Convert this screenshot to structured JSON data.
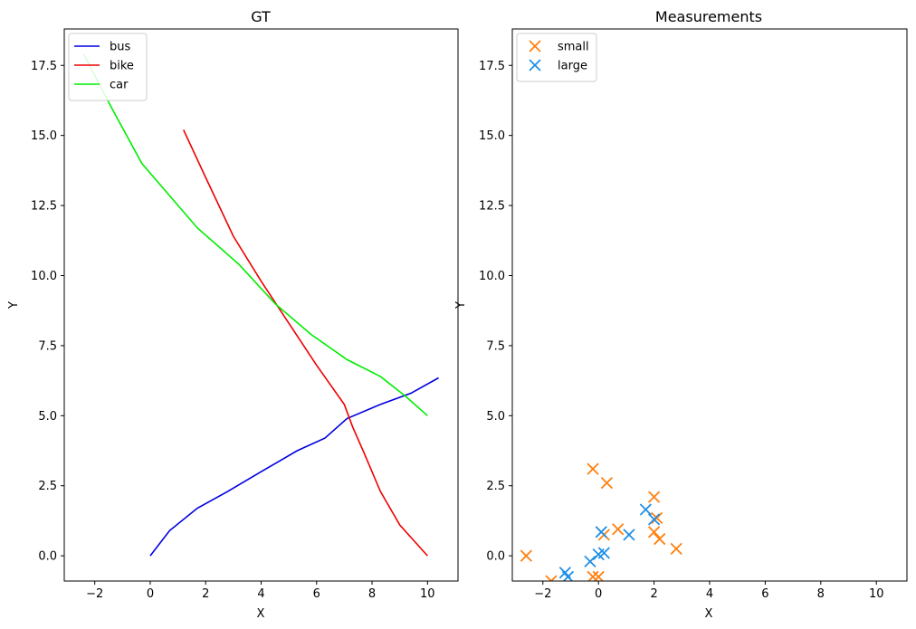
{
  "chart_data": [
    {
      "type": "line",
      "title": "GT",
      "xlabel": "X",
      "ylabel": "Y",
      "xlim": [
        -3.1,
        11.1
      ],
      "ylim": [
        -0.9,
        18.8
      ],
      "xticks": [
        -2,
        0,
        2,
        4,
        6,
        8,
        10
      ],
      "yticks": [
        0.0,
        2.5,
        5.0,
        7.5,
        10.0,
        12.5,
        15.0,
        17.5
      ],
      "legend_position": "upper-left",
      "series": [
        {
          "name": "bus",
          "color": "#0000e0",
          "x": [
            0,
            0.7,
            1.7,
            2.8,
            4.0,
            5.3,
            6.3,
            7.1,
            8.3,
            9.4,
            10.4
          ],
          "y": [
            0,
            0.9,
            1.7,
            2.3,
            3.0,
            3.75,
            4.2,
            4.9,
            5.4,
            5.8,
            6.35
          ]
        },
        {
          "name": "bike",
          "color": "#ee0000",
          "x": [
            1.2,
            2.0,
            3.0,
            4.0,
            5.0,
            6.0,
            7.0,
            7.3,
            7.7,
            8.3,
            9.0,
            10.0
          ],
          "y": [
            15.2,
            13.5,
            11.4,
            9.8,
            8.3,
            6.8,
            5.4,
            4.6,
            3.7,
            2.3,
            1.1,
            0
          ]
        },
        {
          "name": "car",
          "color": "#00ee00",
          "x": [
            -2.4,
            -1.4,
            -0.3,
            1.7,
            3.2,
            4.5,
            5.8,
            7.1,
            8.3,
            9.2,
            10.0
          ],
          "y": [
            17.9,
            16.0,
            14.0,
            11.7,
            10.4,
            9.0,
            7.9,
            7.0,
            6.4,
            5.7,
            5.0
          ]
        }
      ]
    },
    {
      "type": "scatter",
      "title": "Measurements",
      "xlabel": "X",
      "ylabel": "Y",
      "xlim": [
        -3.1,
        11.1
      ],
      "ylim": [
        -0.9,
        18.8
      ],
      "xticks": [
        -2,
        0,
        2,
        4,
        6,
        8,
        10
      ],
      "yticks": [
        0.0,
        2.5,
        5.0,
        7.5,
        10.0,
        12.5,
        15.0,
        17.5
      ],
      "legend_position": "upper-left",
      "series": [
        {
          "name": "small",
          "color": "#ff7f0e",
          "marker": "x",
          "x": [
            -2.6,
            -1.7,
            -0.2,
            0.3,
            -0.2,
            0.0,
            0.2,
            0.7,
            2.0,
            2.1,
            2.0,
            2.2,
            2.8
          ],
          "y": [
            0.0,
            -0.9,
            3.1,
            2.6,
            -0.75,
            -0.75,
            0.75,
            0.95,
            2.1,
            1.35,
            0.85,
            0.6,
            0.25
          ]
        },
        {
          "name": "large",
          "color": "#1f8fe6",
          "marker": "x",
          "x": [
            -1.2,
            -1.1,
            -0.3,
            0.0,
            0.1,
            0.2,
            1.1,
            1.7,
            2.0
          ],
          "y": [
            -0.6,
            -0.75,
            -0.2,
            0.05,
            0.85,
            0.1,
            0.75,
            1.65,
            1.3
          ]
        }
      ]
    }
  ]
}
